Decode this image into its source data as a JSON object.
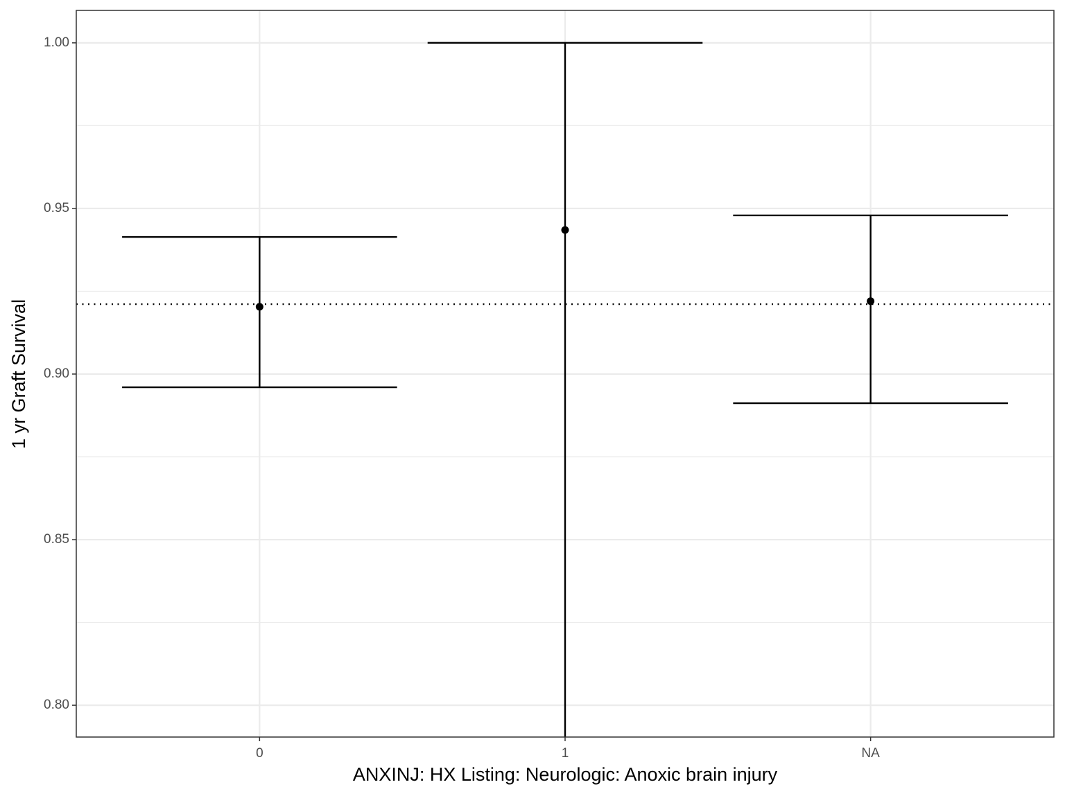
{
  "chart_data": {
    "type": "errorbar",
    "x_label": "ANXINJ: HX Listing: Neurologic: Anoxic brain injury",
    "y_label": "1 yr Graft Survival",
    "categories": [
      "0",
      "1",
      "NA"
    ],
    "values": [
      0.9203,
      0.9435,
      0.922
    ],
    "lower": [
      0.896,
      0.78,
      0.8912
    ],
    "upper": [
      0.9414,
      1.0,
      0.9479
    ],
    "color": "#000000",
    "ylim": [
      0.7904,
      1.0098
    ],
    "yticks": [
      {
        "value": 0.8,
        "label": "0.80"
      },
      {
        "value": 0.85,
        "label": "0.85"
      },
      {
        "value": 0.9,
        "label": "0.90"
      },
      {
        "value": 0.95,
        "label": "0.95"
      },
      {
        "value": 1.0,
        "label": "1.00"
      }
    ],
    "minor_yticks": [
      0.825,
      0.875,
      0.925,
      0.975
    ],
    "grid": true,
    "hline": 0.9211
  }
}
